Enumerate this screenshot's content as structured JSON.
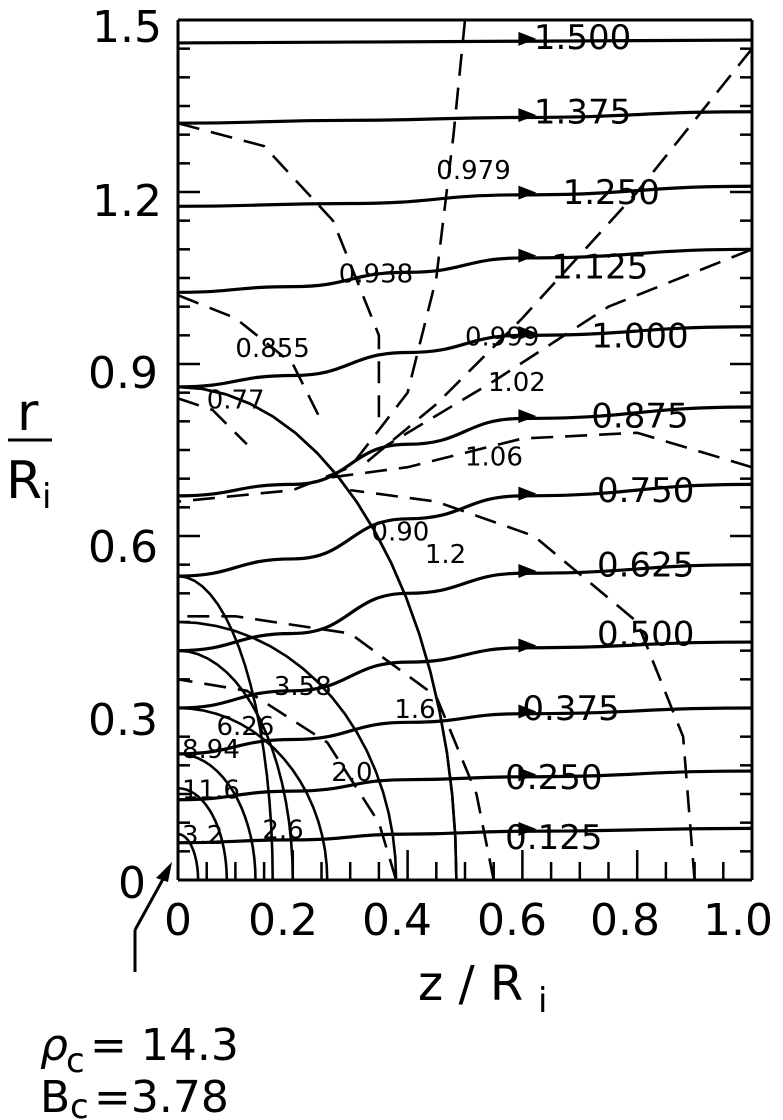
{
  "chart_data": {
    "type": "line",
    "xlabel": "z / R",
    "xlabel_subscript": "i",
    "ylabel": "r",
    "ylabel_denominator": "R",
    "ylabel_subscript": "i",
    "xlim": [
      0,
      1.0
    ],
    "ylim": [
      0,
      1.5
    ],
    "x_ticks": [
      "0",
      "0.2",
      "0.4",
      "0.6",
      "0.8",
      "1.0"
    ],
    "y_ticks": [
      "0",
      "0.3",
      "0.6",
      "0.9",
      "1.2",
      "1.5"
    ],
    "annotation_rho_label": "ρ",
    "annotation_rho_subscript": "c",
    "annotation_rho_value": "= 14.3",
    "annotation_b_label": "B",
    "annotation_b_subscript": "c",
    "annotation_b_value": "=3.78",
    "field_lines": [
      {
        "label": "1.500",
        "points": [
          [
            0,
            1.46
          ],
          [
            0.6,
            1.463
          ],
          [
            1.0,
            1.465
          ]
        ]
      },
      {
        "label": "1.375",
        "points": [
          [
            0,
            1.32
          ],
          [
            0.3,
            1.325
          ],
          [
            0.6,
            1.33
          ],
          [
            1.0,
            1.34
          ]
        ]
      },
      {
        "label": "1.250",
        "points": [
          [
            0,
            1.175
          ],
          [
            0.3,
            1.18
          ],
          [
            0.6,
            1.195
          ],
          [
            1.0,
            1.21
          ]
        ]
      },
      {
        "label": "1.125",
        "points": [
          [
            0,
            1.025
          ],
          [
            0.2,
            1.035
          ],
          [
            0.4,
            1.06
          ],
          [
            0.6,
            1.085
          ],
          [
            1.0,
            1.1
          ]
        ]
      },
      {
        "label": "1.000",
        "points": [
          [
            0,
            0.86
          ],
          [
            0.2,
            0.88
          ],
          [
            0.4,
            0.92
          ],
          [
            0.6,
            0.95
          ],
          [
            1.0,
            0.965
          ]
        ]
      },
      {
        "label": "0.875",
        "points": [
          [
            0,
            0.67
          ],
          [
            0.2,
            0.69
          ],
          [
            0.4,
            0.76
          ],
          [
            0.6,
            0.805
          ],
          [
            1.0,
            0.825
          ]
        ]
      },
      {
        "label": "0.750",
        "points": [
          [
            0,
            0.53
          ],
          [
            0.2,
            0.56
          ],
          [
            0.4,
            0.63
          ],
          [
            0.6,
            0.67
          ],
          [
            1.0,
            0.69
          ]
        ]
      },
      {
        "label": "0.625",
        "points": [
          [
            0,
            0.4
          ],
          [
            0.2,
            0.43
          ],
          [
            0.4,
            0.5
          ],
          [
            0.6,
            0.535
          ],
          [
            1.0,
            0.55
          ]
        ]
      },
      {
        "label": "0.500",
        "points": [
          [
            0,
            0.3
          ],
          [
            0.2,
            0.33
          ],
          [
            0.4,
            0.38
          ],
          [
            0.6,
            0.405
          ],
          [
            1.0,
            0.415
          ]
        ]
      },
      {
        "label": "0.375",
        "points": [
          [
            0,
            0.22
          ],
          [
            0.2,
            0.245
          ],
          [
            0.4,
            0.275
          ],
          [
            0.6,
            0.29
          ],
          [
            1.0,
            0.3
          ]
        ]
      },
      {
        "label": "0.250",
        "points": [
          [
            0,
            0.14
          ],
          [
            0.2,
            0.155
          ],
          [
            0.4,
            0.175
          ],
          [
            0.6,
            0.18
          ],
          [
            1.0,
            0.19
          ]
        ]
      },
      {
        "label": "0.125",
        "points": [
          [
            0,
            0.065
          ],
          [
            0.2,
            0.07
          ],
          [
            0.4,
            0.08
          ],
          [
            0.6,
            0.085
          ],
          [
            1.0,
            0.09
          ]
        ]
      }
    ],
    "density_contours": [
      {
        "label": "3.58",
        "r0": 0.53,
        "z0": 0.165
      },
      {
        "label": "1.6",
        "r0": 0.86,
        "z0": 0.485
      },
      {
        "label": "0.90",
        "r0": 0.86,
        "z0": 0.485
      },
      {
        "label": "6.26",
        "r0": 0.3,
        "z0": 0.26
      },
      {
        "label": "8.94",
        "r0": 0.22,
        "z0": 0.135
      },
      {
        "label": "11.6",
        "r0": 0.16,
        "z0": 0.085
      },
      {
        "label": "3.2",
        "r0": 0.08,
        "z0": 0.035
      },
      {
        "label": "2.6",
        "r0": 0.4,
        "z0": 0.2
      },
      {
        "label": "2.0",
        "r0": 0.45,
        "z0": 0.38
      }
    ],
    "field_strength_labels": [
      "0.979",
      "0.938",
      "0.855",
      "0.77",
      "0.999",
      "1.02",
      "1.06",
      "1.2"
    ]
  }
}
